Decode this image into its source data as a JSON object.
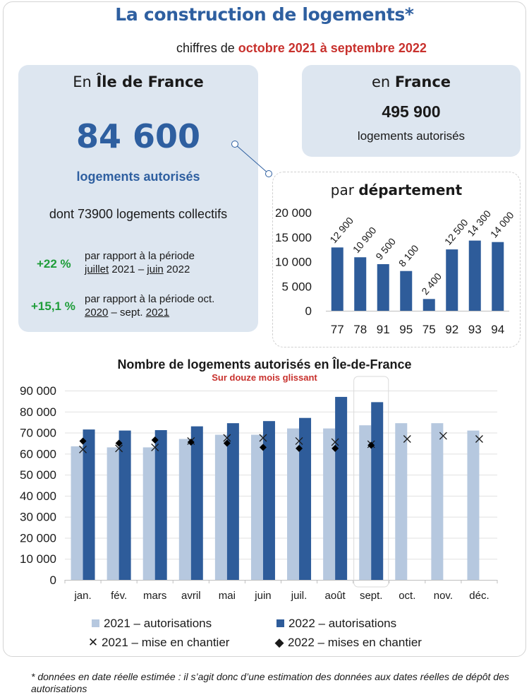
{
  "header": {
    "title": "La construction de logements*",
    "subtitle_prefix": "chiffres de ",
    "subtitle_period": "octobre 2021 à septembre 2022"
  },
  "idf_card": {
    "head_prefix": "En ",
    "head_region": "Île de France",
    "big_number": "84 600",
    "big_label": "logements autorisés",
    "collectifs": "dont 73900 logements collectifs",
    "comparisons": [
      {
        "pct": "+22 %",
        "line1": "par rapport à la période",
        "l2a": "juillet",
        "l2b": " 2021 – ",
        "l2c": "juin",
        "l2d": " 2022"
      },
      {
        "pct": "+15,1 %",
        "line1": "par rapport à la période oct.",
        "l2a": "2020",
        "l2b": " – sept. ",
        "l2c": "2021",
        "l2d": ""
      }
    ]
  },
  "france_card": {
    "head_prefix": "en ",
    "head_country": "France",
    "number": "495 900",
    "label": "logements autorisés"
  },
  "dept_chart": {
    "title_prefix": "par ",
    "title_bold": "département"
  },
  "main_chart": {
    "title": "Nombre de logements autorisés en Île-de-France",
    "subtitle": "Sur douze mois glissant"
  },
  "legend": {
    "a2021": "2021 – autorisations",
    "a2022": "2022 – autorisations",
    "m2021": "2021 – mise en chantier",
    "m2022": "2022 – mises en chantier"
  },
  "colors": {
    "title_blue": "#2e5fa0",
    "bar_dark": "#2e5c9a",
    "bar_light": "#b6c8df",
    "card_bg": "#dde6f0",
    "red": "#c8312d",
    "green": "#1f9d3a"
  },
  "footnote": "* données en date réelle estimée : il s’agit donc d’une estimation des données aux dates réelles de dépôt des autorisations",
  "chart_data": [
    {
      "type": "bar",
      "title": "par département",
      "categories": [
        "77",
        "78",
        "91",
        "95",
        "75",
        "92",
        "93",
        "94"
      ],
      "values": [
        12900,
        10900,
        9500,
        8100,
        2400,
        12500,
        14300,
        14000
      ],
      "value_labels": [
        "12 900",
        "10 900",
        "9 500",
        "8 100",
        "2 400",
        "12 500",
        "14 300",
        "14 000"
      ],
      "ylim": [
        0,
        20000
      ],
      "yticks": [
        0,
        5000,
        10000,
        15000,
        20000
      ],
      "ytick_labels": [
        "0",
        "5 000",
        "10 000",
        "15 000",
        "20 000"
      ],
      "grid": false
    },
    {
      "type": "bar",
      "title": "Nombre de logements autorisés en Île-de-France",
      "subtitle": "Sur douze mois glissant",
      "categories": [
        "jan.",
        "fév.",
        "mars",
        "avril",
        "mai",
        "juin",
        "juil.",
        "août",
        "sept.",
        "oct.",
        "nov.",
        "déc."
      ],
      "ylim": [
        0,
        90000
      ],
      "yticks": [
        0,
        10000,
        20000,
        30000,
        40000,
        50000,
        60000,
        70000,
        80000,
        90000
      ],
      "ytick_labels": [
        "0",
        "10 000",
        "20 000",
        "30 000",
        "40 000",
        "50 000",
        "60 000",
        "70 000",
        "80 000",
        "90 000"
      ],
      "grid": true,
      "legend_position": "bottom",
      "series": [
        {
          "name": "2021 – autorisations",
          "kind": "bar",
          "values": [
            63500,
            63000,
            63000,
            67000,
            69000,
            69000,
            72000,
            72000,
            73500,
            74500,
            74500,
            71000
          ]
        },
        {
          "name": "2022 – autorisations",
          "kind": "bar",
          "values": [
            71500,
            71000,
            71200,
            73000,
            74500,
            75500,
            77000,
            87000,
            84500,
            null,
            null,
            null
          ]
        },
        {
          "name": "2021 – mise en chantier",
          "kind": "marker-x",
          "values": [
            62000,
            62500,
            63000,
            66000,
            67500,
            67500,
            66000,
            65500,
            64500,
            67000,
            68500,
            67000
          ]
        },
        {
          "name": "2022 – mises en chantier",
          "kind": "marker-diamond",
          "values": [
            66000,
            65000,
            66500,
            65500,
            65000,
            63000,
            62500,
            62500,
            64000,
            null,
            null,
            null
          ]
        }
      ]
    }
  ]
}
